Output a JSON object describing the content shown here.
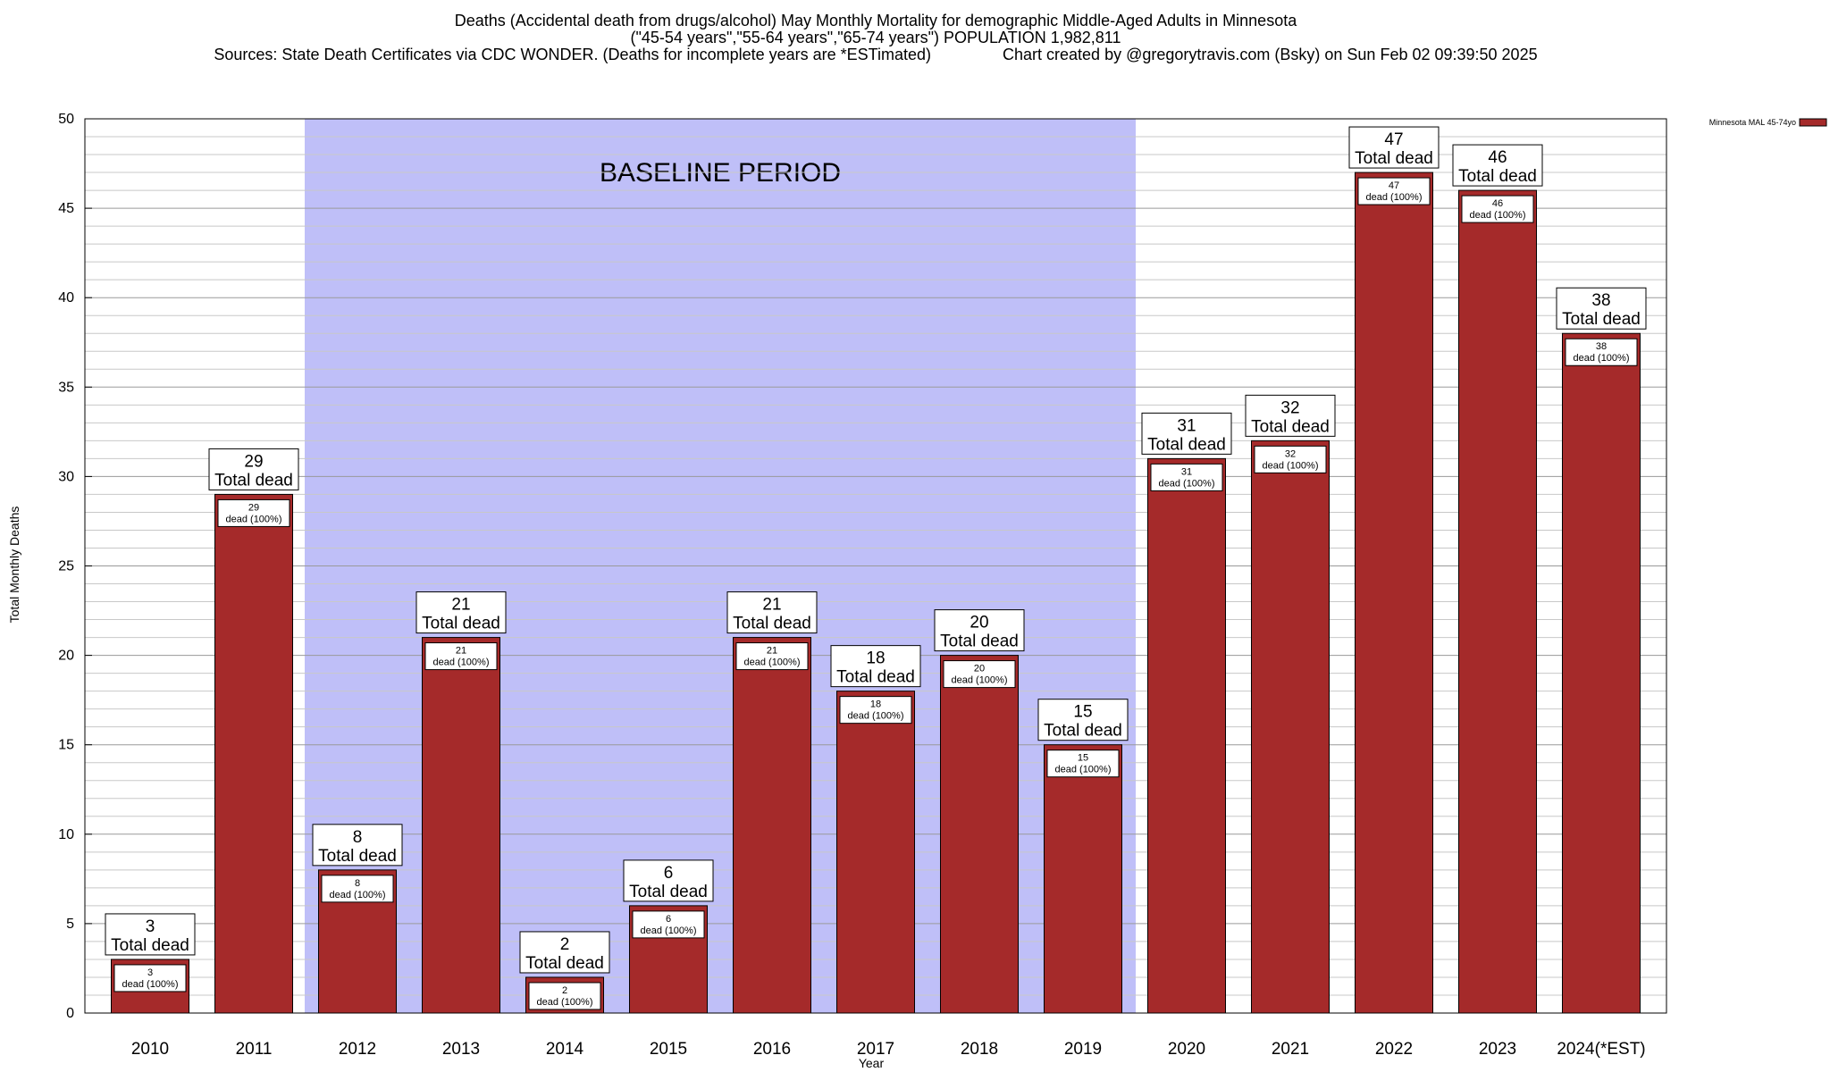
{
  "chart_data": {
    "type": "bar",
    "title_lines": [
      "Deaths (Accidental death from drugs/alcohol) May Monthly Mortality for demographic Middle-Aged Adults in Minnesota",
      "(\"45-54 years\",\"55-64 years\",\"65-74 years\") POPULATION 1,982,811",
      "Sources: State Death Certificates via CDC WONDER. (Deaths for incomplete years are *ESTimated)                Chart created by @gregorytravis.com (Bsky) on Sun Feb 02 09:39:50 2025"
    ],
    "xlabel": "Year",
    "ylabel": "Total Monthly Deaths",
    "ylim": [
      0,
      50
    ],
    "yticks": [
      0,
      5,
      10,
      15,
      20,
      25,
      30,
      35,
      40,
      45,
      50
    ],
    "minor_tick_step": 1,
    "grid": true,
    "legend_position": "top-right",
    "categories": [
      "2010",
      "2011",
      "2012",
      "2013",
      "2014",
      "2015",
      "2016",
      "2017",
      "2018",
      "2019",
      "2020",
      "2021",
      "2022",
      "2023",
      "2024(*EST)"
    ],
    "series": [
      {
        "name": "Minnesota MAL 45-74yo",
        "color": "#a52a2a",
        "values": [
          3,
          29,
          8,
          21,
          2,
          6,
          21,
          18,
          20,
          15,
          31,
          32,
          47,
          46,
          38
        ]
      }
    ],
    "total_label_suffix": "Total dead",
    "inner_label_suffix": "dead (100%)",
    "baseline_period": {
      "label": "BASELINE PERIOD",
      "start": "2012",
      "end": "2019",
      "color": "#bfbff8"
    }
  }
}
